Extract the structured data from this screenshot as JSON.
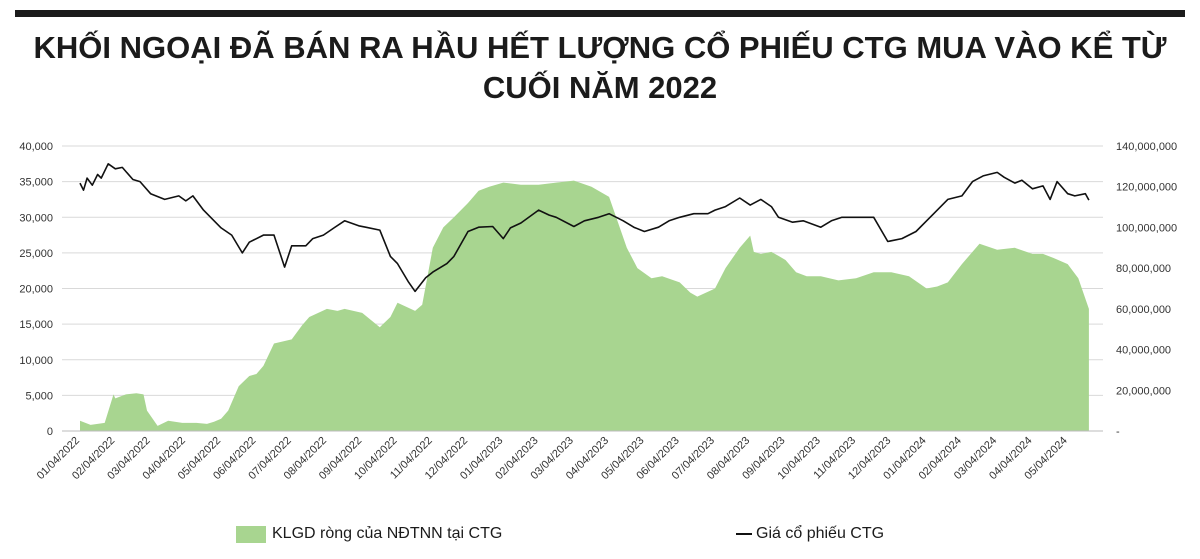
{
  "title": "KHỐI NGOẠI ĐÃ BÁN RA HẦU HẾT LƯỢNG CỔ PHIẾU CTG MUA VÀO KỂ TỪ CUỐI NĂM 2022",
  "chart_data": {
    "type": "area",
    "title": "KHỐI NGOẠI ĐÃ BÁN RA HẦU HẾT LƯỢNG CỔ PHIẾU CTG MUA VÀO KỂ TỪ CUỐI NĂM 2022",
    "x_labels": [
      "01/04/2022",
      "02/04/2022",
      "03/04/2022",
      "04/04/2022",
      "05/04/2022",
      "06/04/2022",
      "07/04/2022",
      "08/04/2022",
      "09/04/2022",
      "10/04/2022",
      "11/04/2022",
      "12/04/2022",
      "01/04/2023",
      "02/04/2023",
      "03/04/2023",
      "04/04/2023",
      "05/04/2023",
      "06/04/2023",
      "07/04/2023",
      "08/04/2023",
      "09/04/2023",
      "10/04/2023",
      "11/04/2023",
      "12/04/2023",
      "01/04/2024",
      "02/04/2024",
      "03/04/2024",
      "04/04/2024",
      "05/04/2024"
    ],
    "y_left": {
      "ticks": [
        "0",
        "5,000",
        "10,000",
        "15,000",
        "20,000",
        "25,000",
        "30,000",
        "35,000",
        "40,000"
      ],
      "min": 0,
      "max": 40000
    },
    "y_right": {
      "ticks": [
        "-",
        "20,000,000",
        "40,000,000",
        "60,000,000",
        "80,000,000",
        "100,000,000",
        "120,000,000",
        "140,000,000"
      ],
      "min": 0,
      "max": 140000000
    },
    "grid": true,
    "legend_position": "bottom",
    "series": [
      {
        "name": "KLGD ròng của NĐTNN tại CTG",
        "type": "area",
        "axis": "right",
        "color": "#a8d590",
        "x": [
          0,
          0.3,
          0.7,
          0.95,
          1.0,
          1.3,
          1.6,
          1.8,
          1.9,
          2.2,
          2.5,
          2.9,
          3.3,
          3.6,
          3.8,
          4.0,
          4.2,
          4.5,
          4.8,
          5.0,
          5.2,
          5.5,
          6.0,
          6.3,
          6.5,
          7.0,
          7.3,
          7.5,
          8.0,
          8.5,
          8.8,
          9.0,
          9.5,
          9.7,
          10.0,
          10.3,
          10.6,
          11.0,
          11.3,
          11.6,
          12.0,
          12.5,
          13.0,
          13.5,
          14.0,
          14.5,
          15.0,
          15.5,
          15.8,
          16.2,
          16.5,
          17.0,
          17.3,
          17.5,
          18.0,
          18.3,
          18.7,
          19.0,
          19.1,
          19.3,
          19.6,
          19.8,
          20.0,
          20.3,
          20.6,
          21.0,
          21.5,
          22.0,
          22.5,
          23.0,
          23.5,
          24.0,
          24.3,
          24.6,
          25.0,
          25.5,
          26.0,
          26.5,
          27.0,
          27.3,
          27.6,
          28.0,
          28.3,
          28.6
        ],
        "values": [
          5000000,
          3000000,
          4000000,
          18000000,
          16000000,
          18000000,
          18500000,
          18000000,
          10000000,
          2500000,
          5000000,
          4000000,
          4000000,
          3500000,
          4500000,
          6000000,
          10000000,
          22000000,
          27000000,
          28000000,
          32000000,
          43000000,
          45000000,
          52000000,
          56000000,
          60000000,
          59000000,
          60000000,
          58000000,
          51000000,
          56000000,
          63000000,
          59000000,
          62000000,
          90000000,
          100000000,
          105000000,
          112000000,
          118000000,
          120000000,
          122000000,
          121000000,
          121000000,
          122000000,
          123000000,
          120000000,
          115000000,
          90000000,
          80000000,
          75000000,
          76000000,
          73000000,
          68000000,
          66000000,
          70000000,
          80000000,
          90000000,
          96000000,
          88000000,
          87000000,
          88000000,
          86000000,
          84000000,
          78000000,
          76000000,
          76000000,
          74000000,
          75000000,
          78000000,
          78000000,
          76000000,
          70000000,
          71000000,
          73000000,
          82000000,
          92000000,
          89000000,
          90000000,
          87000000,
          87000000,
          85000000,
          82000000,
          75000000,
          60000000
        ]
      },
      {
        "name": "Giá cổ phiếu CTG",
        "type": "line",
        "axis": "left",
        "color": "#111111",
        "x": [
          0,
          0.1,
          0.2,
          0.35,
          0.5,
          0.6,
          0.8,
          1.0,
          1.2,
          1.5,
          1.7,
          2.0,
          2.4,
          2.8,
          3.0,
          3.2,
          3.5,
          4.0,
          4.3,
          4.6,
          4.8,
          5.2,
          5.5,
          5.8,
          6.0,
          6.4,
          6.6,
          6.9,
          7.2,
          7.5,
          7.9,
          8.1,
          8.5,
          8.8,
          9.0,
          9.3,
          9.5,
          9.8,
          10.0,
          10.4,
          10.6,
          11.0,
          11.3,
          11.7,
          12.0,
          12.2,
          12.5,
          13.0,
          13.3,
          13.5,
          14.0,
          14.3,
          14.7,
          15.0,
          15.4,
          15.7,
          16.0,
          16.4,
          16.7,
          17.0,
          17.4,
          17.8,
          18.0,
          18.3,
          18.7,
          19.0,
          19.3,
          19.6,
          19.8,
          20.2,
          20.5,
          21.0,
          21.3,
          21.6,
          22.0,
          22.5,
          22.9,
          23.3,
          23.7,
          24.0,
          24.2,
          24.6,
          25.0,
          25.3,
          25.6,
          26.0,
          26.2,
          26.5,
          26.7,
          27.0,
          27.3,
          27.5,
          27.7,
          28.0,
          28.2,
          28.5,
          28.6
        ],
        "values": [
          34800,
          33800,
          35500,
          34500,
          36000,
          35500,
          37500,
          36800,
          37000,
          35300,
          35000,
          33300,
          32500,
          33000,
          32300,
          33000,
          31000,
          28500,
          27500,
          25000,
          26500,
          27500,
          27500,
          23000,
          26000,
          26000,
          27000,
          27500,
          28500,
          29500,
          28800,
          28600,
          28200,
          24500,
          23500,
          21000,
          19600,
          21500,
          22300,
          23500,
          24500,
          28000,
          28600,
          28700,
          27000,
          28500,
          29200,
          31000,
          30300,
          30000,
          28700,
          29500,
          30000,
          30500,
          29500,
          28600,
          28000,
          28600,
          29500,
          30000,
          30500,
          30500,
          31000,
          31500,
          32700,
          31700,
          32500,
          31500,
          30000,
          29300,
          29500,
          28600,
          29500,
          30000,
          30000,
          30000,
          26600,
          27000,
          28000,
          29500,
          30500,
          32500,
          33000,
          35000,
          35800,
          36300,
          35600,
          34800,
          35200,
          34000,
          34400,
          32500,
          35000,
          33300,
          33000,
          33300,
          32400
        ]
      }
    ]
  },
  "legend": {
    "area_label": "KLGD ròng của NĐTNN tại CTG",
    "line_label": "Giá cổ phiếu CTG"
  }
}
